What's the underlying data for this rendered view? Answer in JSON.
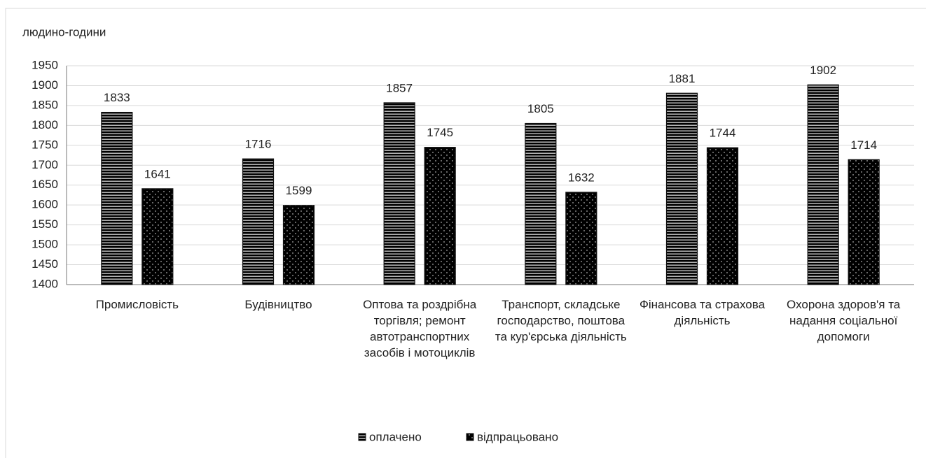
{
  "chart_data": {
    "type": "bar",
    "y_label": "людино-години",
    "categories": [
      "Промисловість",
      "Будівництво",
      "Оптова та роздрібна торгівля; ремонт автотранспортних засобів і мотоциклів",
      "Транспорт, складське господарство, поштова та кур'єрська діяльність",
      "Фінансова та страхова діяльність",
      "Охорона здоров'я та надання соціальної допомоги"
    ],
    "series": [
      {
        "name": "оплачено",
        "color": "#5bcdf0",
        "pattern": "stripes",
        "values": [
          1833,
          1716,
          1857,
          1805,
          1881,
          1902
        ]
      },
      {
        "name": "відпрацьовано",
        "color": "#ffc000",
        "pattern": "dots",
        "values": [
          1641,
          1599,
          1745,
          1632,
          1744,
          1714
        ]
      }
    ],
    "ylim": [
      1400,
      1950
    ],
    "yticks": [
      1400,
      1450,
      1500,
      1550,
      1600,
      1650,
      1700,
      1750,
      1800,
      1850,
      1900,
      1950
    ],
    "grid": true,
    "legend": "bottom"
  }
}
